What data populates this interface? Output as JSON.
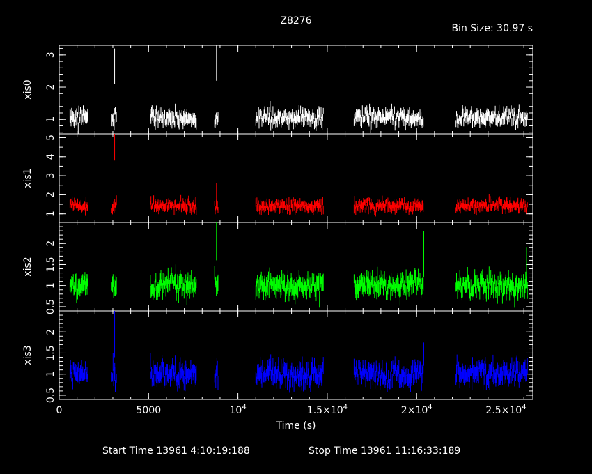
{
  "header": {
    "title": "Z8276",
    "bin_size": "Bin Size: 30.97 s"
  },
  "footer": {
    "start_time": "Start Time 13961  4:10:19:188",
    "stop_time": "Stop Time 13961 11:16:33:189"
  },
  "colors": {
    "background": "#000000",
    "frame": "#ffffff",
    "xis0": "#ffffff",
    "xis1": "#ff0000",
    "xis2": "#00ff00",
    "xis3": "#0000ff"
  },
  "chart_data": {
    "type": "line",
    "title": "Z8276",
    "xlabel": "Time (s)",
    "xlim": [
      0,
      26500
    ],
    "x_ticks": [
      {
        "value": 0,
        "label": "0"
      },
      {
        "value": 5000,
        "label": "5000"
      },
      {
        "value": 10000,
        "label": "10^4"
      },
      {
        "value": 15000,
        "label": "1.5×10^4"
      },
      {
        "value": 20000,
        "label": "2×10^4"
      },
      {
        "value": 25000,
        "label": "2.5×10^4"
      }
    ],
    "x_minor_step": 1000,
    "segments": [
      {
        "start": 600,
        "end": 1600
      },
      {
        "start": 2950,
        "end": 3200
      },
      {
        "start": 5100,
        "end": 7700
      },
      {
        "start": 8700,
        "end": 8900
      },
      {
        "start": 11000,
        "end": 14800
      },
      {
        "start": 16500,
        "end": 20400
      },
      {
        "start": 22200,
        "end": 26200
      }
    ],
    "series": [
      {
        "name": "xis0",
        "color": "#ffffff",
        "ylim": [
          0.55,
          3.3
        ],
        "y_ticks": [
          1,
          2,
          3
        ],
        "y_minor_step": 0.2,
        "base": 1.05,
        "noise": 0.17,
        "spikes": [
          {
            "x": 3100,
            "y": 3.2,
            "from": 2.1
          },
          {
            "x": 8800,
            "y": 3.3,
            "from": 2.2
          }
        ]
      },
      {
        "name": "xis1",
        "color": "#ff0000",
        "ylim": [
          0.55,
          5.2
        ],
        "y_ticks": [
          1,
          2,
          3,
          4,
          5
        ],
        "y_minor_step": 0.5,
        "base": 1.42,
        "noise": 0.22,
        "spikes": [
          {
            "x": 3100,
            "y": 5.2,
            "from": 3.8
          },
          {
            "x": 8800,
            "y": 2.6,
            "from": 1.5
          }
        ]
      },
      {
        "name": "xis2",
        "color": "#00ff00",
        "ylim": [
          0.4,
          2.5
        ],
        "y_ticks": [
          0.5,
          1,
          1.5,
          2
        ],
        "y_minor_step": 0.1,
        "base": 1.0,
        "noise": 0.18,
        "spikes": [
          {
            "x": 8800,
            "y": 2.5,
            "from": 1.6
          },
          {
            "x": 20400,
            "y": 2.3,
            "from": 1.2
          },
          {
            "x": 26150,
            "y": 1.9,
            "from": 1.1
          }
        ]
      },
      {
        "name": "xis3",
        "color": "#0000ff",
        "ylim": [
          0.4,
          2.5
        ],
        "y_ticks": [
          0.5,
          1,
          1.5,
          2
        ],
        "y_minor_step": 0.1,
        "base": 1.0,
        "noise": 0.18,
        "spikes": [
          {
            "x": 3100,
            "y": 2.5,
            "from": 1.4
          },
          {
            "x": 20400,
            "y": 1.75,
            "from": 1.2
          }
        ]
      }
    ]
  }
}
